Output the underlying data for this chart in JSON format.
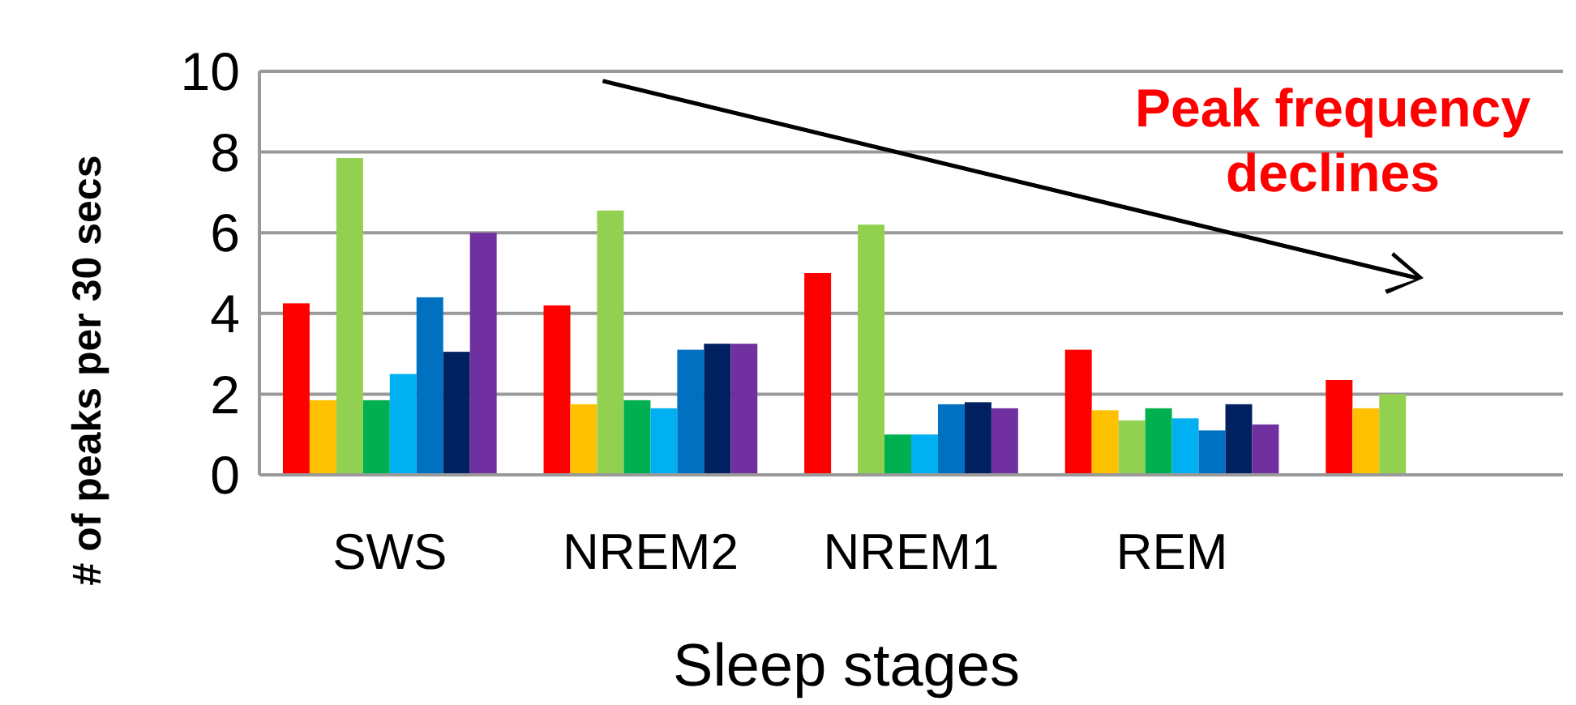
{
  "chart_data": {
    "type": "bar",
    "xlabel": "Sleep stages",
    "ylabel": "# of peaks per 30 secs",
    "categories": [
      "SWS",
      "NREM2",
      "NREM1",
      "REM",
      null
    ],
    "series": [
      {
        "color": "#ff0000",
        "values": [
          4.25,
          4.2,
          5.0,
          3.1,
          2.35
        ]
      },
      {
        "color": "#ffc000",
        "values": [
          1.85,
          1.75,
          null,
          1.6,
          1.65
        ]
      },
      {
        "color": "#92d050",
        "values": [
          7.85,
          6.55,
          6.2,
          1.35,
          2.0
        ]
      },
      {
        "color": "#00b050",
        "values": [
          1.85,
          1.85,
          1.0,
          1.65,
          null
        ]
      },
      {
        "color": "#00b0f0",
        "values": [
          2.5,
          1.65,
          1.0,
          1.4,
          null
        ]
      },
      {
        "color": "#0070c0",
        "values": [
          4.4,
          3.1,
          1.75,
          1.1,
          null
        ]
      },
      {
        "color": "#002060",
        "values": [
          3.05,
          3.25,
          1.8,
          1.75,
          null
        ]
      },
      {
        "color": "#7030a0",
        "values": [
          6.0,
          3.25,
          1.65,
          1.25,
          null
        ]
      }
    ],
    "ylim": [
      0,
      10
    ],
    "yticks": [
      0,
      2,
      4,
      6,
      8,
      10
    ],
    "grid": "y",
    "annotations": [
      "Peak frequency\ndeclines"
    ]
  }
}
